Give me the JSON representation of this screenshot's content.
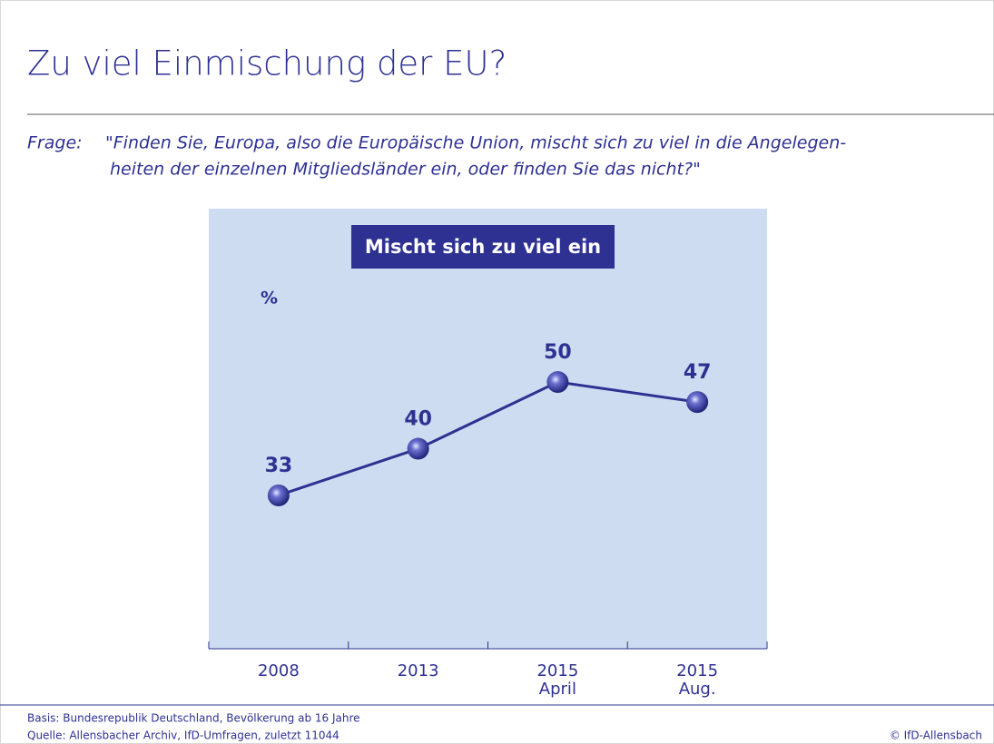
{
  "chart_data": {
    "type": "line",
    "title": "Zu viel Einmischung der EU?",
    "question_label": "Frage:",
    "question": [
      "\"Finden Sie, Europa, also die Europäische Union, mischt sich zu viel in die Angelegen-",
      "heiten der einzelnen Mitgliedsländer ein, oder finden Sie das nicht?\""
    ],
    "y_unit": "%",
    "categories": [
      [
        "2008"
      ],
      [
        "2013"
      ],
      [
        "2015",
        "April"
      ],
      [
        "2015",
        "Aug."
      ]
    ],
    "series": [
      {
        "name": "Mischt sich zu viel ein",
        "color": "#2e3192",
        "values": [
          33,
          40,
          50,
          47
        ]
      }
    ],
    "ylim": [
      10,
      76
    ],
    "plot_background": "#cddcf0",
    "footnotes": [
      "Basis: Bundesrepublik Deutschland, Bevölkerung ab 16 Jahre",
      "Quelle: Allensbacher Archiv, IfD-Umfragen, zuletzt 11044"
    ],
    "copyright": "© IfD-Allensbach"
  }
}
